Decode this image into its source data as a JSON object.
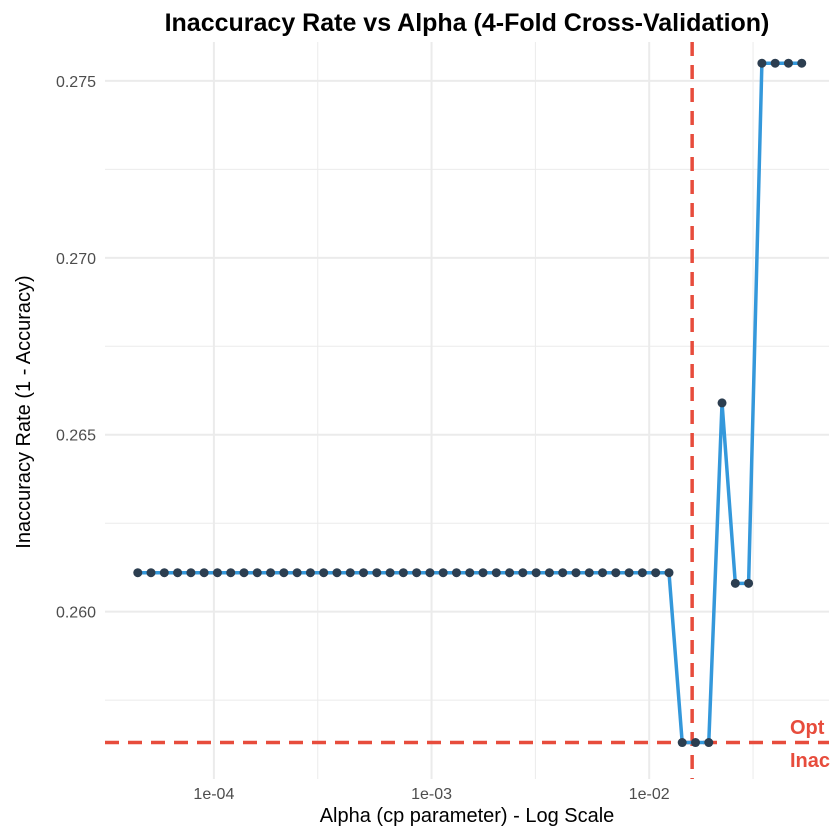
{
  "chart_data": {
    "type": "line",
    "title": "Inaccuracy Rate vs Alpha (4-Fold Cross-Validation)",
    "xlabel": "Alpha (cp parameter) - Log Scale",
    "ylabel": "Inaccuracy Rate (1 - Accuracy)",
    "x_scale": "log10",
    "xlim": [
      3.16e-05,
      0.067
    ],
    "ylim": [
      0.25527,
      0.2761
    ],
    "x_ticks": [
      {
        "value": 0.0001,
        "label": "1e-04"
      },
      {
        "value": 0.001,
        "label": "1e-03"
      },
      {
        "value": 0.01,
        "label": "1e-02"
      }
    ],
    "y_ticks": [
      {
        "value": 0.26,
        "label": "0.260"
      },
      {
        "value": 0.265,
        "label": "0.265"
      },
      {
        "value": 0.27,
        "label": "0.270"
      },
      {
        "value": 0.275,
        "label": "0.275"
      }
    ],
    "grid": true,
    "series": [
      {
        "line_color": "#3498db",
        "point_color": "#2c3e50",
        "x": [
          4.47e-05,
          5.14e-05,
          5.92e-05,
          6.81e-05,
          7.84e-05,
          9.02e-05,
          0.0001038,
          0.0001195,
          0.0001375,
          0.0001582,
          0.0001821,
          0.0002096,
          0.0002412,
          0.0002776,
          0.0003194,
          0.0003676,
          0.0004231,
          0.0004869,
          0.0005603,
          0.0006448,
          0.000742,
          0.000854,
          0.000983,
          0.001131,
          0.001302,
          0.001498,
          0.001724,
          0.001984,
          0.002283,
          0.002627,
          0.003024,
          0.00348,
          0.004005,
          0.004609,
          0.005304,
          0.006104,
          0.007024,
          0.008084,
          0.009303,
          0.01071,
          0.01233,
          0.01418,
          0.01632,
          0.01878,
          0.02161,
          0.02487,
          0.02862,
          0.03294,
          0.03791,
          0.04363,
          0.05021
        ],
        "y": [
          0.2611,
          0.2611,
          0.2611,
          0.2611,
          0.2611,
          0.2611,
          0.2611,
          0.2611,
          0.2611,
          0.2611,
          0.2611,
          0.2611,
          0.2611,
          0.2611,
          0.2611,
          0.2611,
          0.2611,
          0.2611,
          0.2611,
          0.2611,
          0.2611,
          0.2611,
          0.2611,
          0.2611,
          0.2611,
          0.2611,
          0.2611,
          0.2611,
          0.2611,
          0.2611,
          0.2611,
          0.2611,
          0.2611,
          0.2611,
          0.2611,
          0.2611,
          0.2611,
          0.2611,
          0.2611,
          0.2611,
          0.2611,
          0.2563,
          0.2563,
          0.2563,
          0.2659,
          0.2608,
          0.2608,
          0.2755,
          0.2755,
          0.2755,
          0.2755
        ]
      }
    ],
    "reference_lines": [
      {
        "orientation": "vertical",
        "value": 0.01575,
        "color": "#e74c3c",
        "style": "dashed"
      },
      {
        "orientation": "horizontal",
        "value": 0.2563,
        "color": "#e74c3c",
        "style": "dashed"
      }
    ],
    "annotations": [
      {
        "text": "Opt",
        "color": "#e74c3c"
      },
      {
        "text": "Inac",
        "color": "#e74c3c"
      }
    ]
  }
}
